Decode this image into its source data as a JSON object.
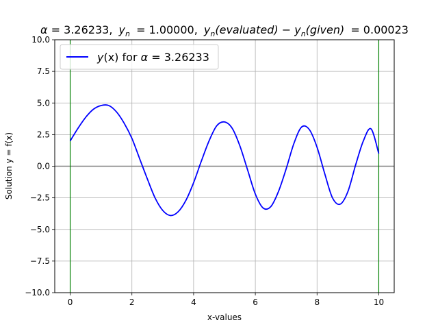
{
  "chart_data": {
    "type": "line",
    "title": {
      "alpha_symbol": "α",
      "alpha_value": "= 3.26233,",
      "yn_symbol": "y",
      "yn_sub": "n",
      "yn_value": "= 1.00000,",
      "diff_left": "y",
      "diff_left_sub": "n",
      "diff_left_arg": "(evaluated)",
      "minus": " − ",
      "diff_right": "y",
      "diff_right_sub": "n",
      "diff_right_arg": "(given)",
      "diff_value": "= 0.00023"
    },
    "xlabel": "x-values",
    "ylabel": "Solution y = f(x)",
    "xlim": [
      -0.5,
      10.5
    ],
    "ylim": [
      -10,
      10
    ],
    "xticks": [
      0,
      2,
      4,
      6,
      8,
      10
    ],
    "xtick_labels": [
      "0",
      "2",
      "4",
      "6",
      "8",
      "10"
    ],
    "yticks": [
      -10,
      -7.5,
      -5,
      -2.5,
      0,
      2.5,
      5,
      7.5,
      10
    ],
    "ytick_labels": [
      "−10.0",
      "−7.5",
      "−5.0",
      "−2.5",
      "0.0",
      "2.5",
      "5.0",
      "7.5",
      "10.0"
    ],
    "grid": true,
    "legend_position": "top-left",
    "legend": {
      "func": "y",
      "arg": "(x)",
      "for_text": "for",
      "alpha": "α",
      "value": "= 3.26233"
    },
    "reference_lines": {
      "horizontal_y": 0,
      "vertical_x": [
        0,
        10
      ],
      "horizontal_color": "#808080",
      "vertical_color": "#008000"
    },
    "series": [
      {
        "color": "#0000ff",
        "x": [
          0,
          0.25,
          0.5,
          0.75,
          1.0,
          1.25,
          1.5,
          1.75,
          2.0,
          2.25,
          2.5,
          2.75,
          3.0,
          3.25,
          3.5,
          3.75,
          4.0,
          4.25,
          4.5,
          4.75,
          5.0,
          5.25,
          5.5,
          5.75,
          6.0,
          6.25,
          6.5,
          6.75,
          7.0,
          7.25,
          7.5,
          7.75,
          8.0,
          8.25,
          8.5,
          8.75,
          9.0,
          9.25,
          9.5,
          9.75,
          10.0
        ],
        "y": [
          2.0,
          2.99,
          3.86,
          4.5,
          4.8,
          4.8,
          4.3,
          3.4,
          2.2,
          0.6,
          -1.0,
          -2.5,
          -3.5,
          -3.9,
          -3.6,
          -2.7,
          -1.3,
          0.4,
          2.0,
          3.2,
          3.5,
          3.0,
          1.6,
          -0.3,
          -2.2,
          -3.3,
          -3.2,
          -2.0,
          -0.2,
          1.8,
          3.1,
          2.9,
          1.5,
          -0.6,
          -2.5,
          -3.0,
          -2.0,
          0.1,
          2.0,
          2.95,
          1.0
        ]
      }
    ]
  }
}
